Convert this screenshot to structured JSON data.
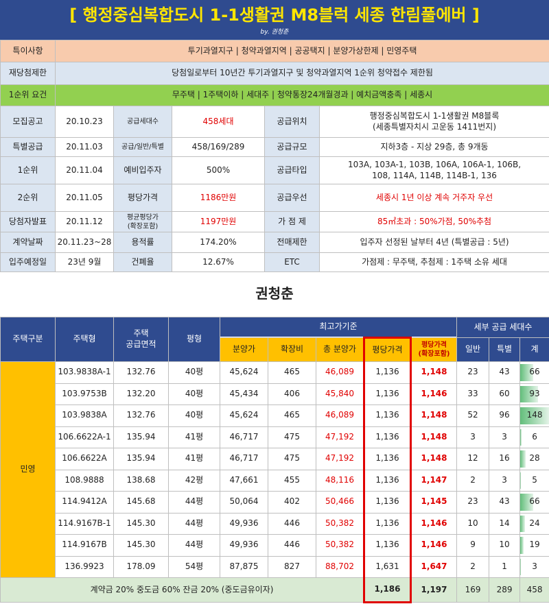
{
  "header": {
    "title": "[ 행정중심복합도시 1-1생활권 M8블럭 세종 한림풀에버 ]",
    "byline": "by. 권청춘"
  },
  "summary": {
    "rows": [
      {
        "label": "특이사항",
        "value": "투기과열지구 | 청약과열지역 | 공공택지 | 분양가상한제 | 민영주택"
      },
      {
        "label": "재당첨제한",
        "value": "당첨일로부터 10년간 투기과열지구 및 청약과열지역 1순위 청약접수 제한됨"
      },
      {
        "label": "1순위 요건",
        "value": "무주택 | 1주택이하 | 세대주 | 청약통장24개월경과 | 예치금액충족 | 세종시"
      }
    ]
  },
  "details": {
    "rows": [
      [
        "모집공고",
        "20.10.23",
        "공급세대수",
        "458세대",
        "공급위치",
        "행정중심복합도시 1-1생활권 M8블록\n(세종특별자치시 고운동 1411번지)"
      ],
      [
        "특별공급",
        "20.11.03",
        "공급/일반/특별",
        "458/169/289",
        "공급규모",
        "지하3층 - 지상 29층, 총 9개동"
      ],
      [
        "1순위",
        "20.11.04",
        "예비입주자",
        "500%",
        "공급타입",
        "103A, 103A-1, 103B, 106A, 106A-1, 106B,\n108, 114A, 114B, 114B-1, 136"
      ],
      [
        "2순위",
        "20.11.05",
        "평당가격",
        "1186만원",
        "공급우선",
        "세종시 1년 이상 계속 거주자 우선"
      ],
      [
        "당첨자발표",
        "20.11.12",
        "평균평당가\n(확장포함)",
        "1197만원",
        "가 점 제",
        "85㎡초과 : 50%가점, 50%추첨"
      ],
      [
        "계약날짜",
        "20.11.23~28",
        "용적률",
        "174.20%",
        "전매제한",
        "입주자 선정된 날부터 4년 (특별공급 : 5년)"
      ],
      [
        "입주예정일",
        "23년 9월",
        "건폐율",
        "12.67%",
        "ETC",
        "가점제 : 무주택, 추첨제 : 1주택 소유 세대"
      ]
    ]
  },
  "author": "권청춘",
  "table": {
    "header": [
      "주택구분",
      "주택형",
      "주택\n공급면적",
      "평형",
      "최고가기준",
      "세부 공급 세대수"
    ],
    "subheader": [
      "분양가",
      "확장비",
      "총 분양가",
      "평당가격",
      "평당가격\n(확장포함)",
      "일반",
      "특별",
      "계"
    ],
    "group": "민영",
    "rows": [
      [
        "103.9838A-1",
        "132.76",
        "40평",
        "45,624",
        "465",
        "46,089",
        "1,136",
        "1,148",
        23,
        43,
        66
      ],
      [
        "103.9753B",
        "132.20",
        "40평",
        "45,434",
        "406",
        "45,840",
        "1,136",
        "1,146",
        33,
        60,
        93
      ],
      [
        "103.9838A",
        "132.76",
        "40평",
        "45,624",
        "465",
        "46,089",
        "1,136",
        "1,148",
        52,
        96,
        148
      ],
      [
        "106.6622A-1",
        "135.94",
        "41평",
        "46,717",
        "475",
        "47,192",
        "1,136",
        "1,148",
        3,
        3,
        6
      ],
      [
        "106.6622A",
        "135.94",
        "41평",
        "46,717",
        "475",
        "47,192",
        "1,136",
        "1,148",
        12,
        16,
        28
      ],
      [
        "108.9888",
        "138.68",
        "42평",
        "47,661",
        "455",
        "48,116",
        "1,136",
        "1,147",
        2,
        3,
        5
      ],
      [
        "114.9412A",
        "145.68",
        "44평",
        "50,064",
        "402",
        "50,466",
        "1,136",
        "1,145",
        23,
        43,
        66
      ],
      [
        "114.9167B-1",
        "145.30",
        "44평",
        "49,936",
        "446",
        "50,382",
        "1,136",
        "1,146",
        10,
        14,
        24
      ],
      [
        "114.9167B",
        "145.30",
        "44평",
        "49,936",
        "446",
        "50,382",
        "1,136",
        "1,146",
        9,
        10,
        19
      ],
      [
        "136.9923",
        "178.09",
        "54평",
        "87,875",
        "827",
        "88,702",
        "1,631",
        "1,647",
        2,
        1,
        3
      ]
    ],
    "footer": {
      "label": "계약금 20% 중도금 60% 잔금 20% (중도금유이자)",
      "values": [
        "1,186",
        "1,197",
        169,
        289,
        458
      ]
    }
  }
}
